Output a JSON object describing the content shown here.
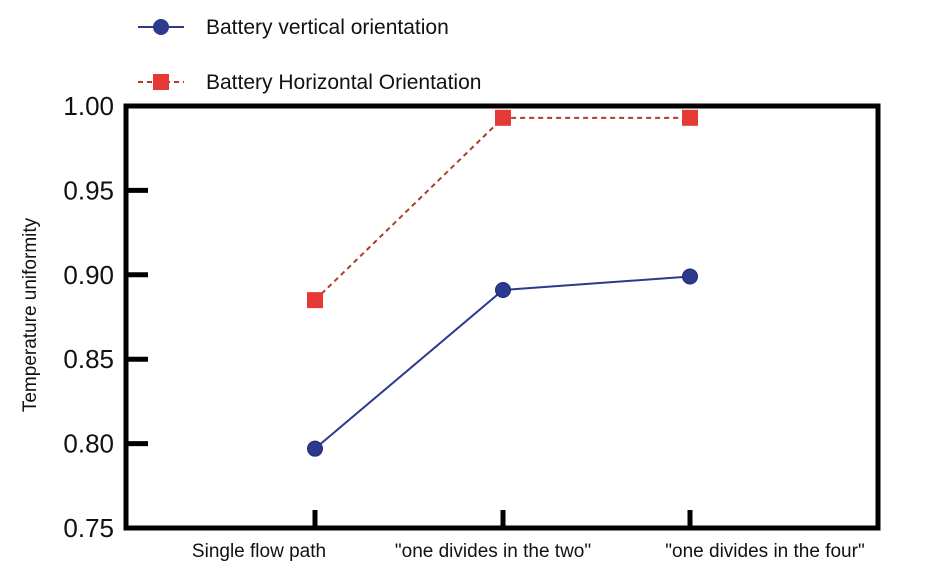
{
  "chart_data": {
    "type": "line",
    "categories": [
      "Single flow path",
      "\"one divides in the two\"",
      "\"one divides in the four\""
    ],
    "series": [
      {
        "name": "Battery vertical orientation",
        "values": [
          0.797,
          0.891,
          0.899
        ],
        "color": "#2b3a8c",
        "marker": "circle",
        "line_style": "solid"
      },
      {
        "name": "Battery Horizontal Orientation",
        "values": [
          0.885,
          0.993,
          0.993
        ],
        "color": "#e53935",
        "line_color": "#b03a2e",
        "marker": "square",
        "line_style": "dashed"
      }
    ],
    "ylabel": "Temperature uniformity",
    "xlabel": "",
    "ylim": [
      0.75,
      1.0
    ],
    "yticks": [
      "0.75",
      "0.80",
      "0.85",
      "0.90",
      "0.95",
      "1.00"
    ],
    "grid": false,
    "legend_position": "top-left"
  }
}
